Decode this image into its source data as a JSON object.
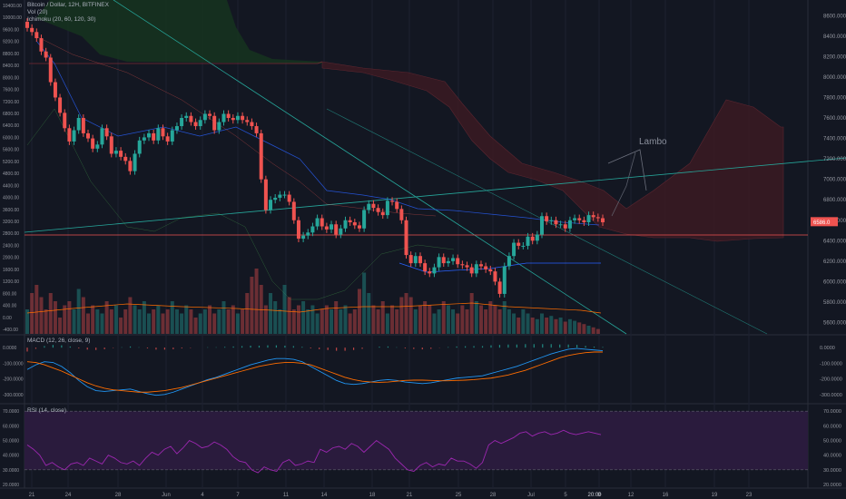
{
  "header": {
    "symbol_line": "Bitcoin / Dollar, 12H, BITFINEX",
    "vol_line": "Vol (20)",
    "ichimoku_line": "Ichimoku (20, 60, 120, 30)"
  },
  "panes": {
    "macd_label": "MACD (12, 26, close, 9)",
    "rsi_label": "RSI (14, close)"
  },
  "annotation": "Lambo",
  "current_price_label": "6586.0",
  "colors": {
    "background": "#131722",
    "up": "#26a69a",
    "down": "#ef5350",
    "macd_line": "#2196f3",
    "signal_line": "#ff6d00",
    "rsi_line": "#9c27b0",
    "rsi_band": "#2a1b3d",
    "cloud_bear": "#3b1a22",
    "cloud_bull": "#16321f"
  },
  "chart_data": [
    {
      "type": "candlestick",
      "title": "Bitcoin / Dollar, 12H, BITFINEX",
      "x_tick_labels": [
        "21",
        "24",
        "28",
        "Jun",
        "4",
        "7",
        "11",
        "14",
        "18",
        "21",
        "25",
        "28",
        "Jul",
        "5",
        "9",
        "12",
        "16",
        "19",
        "23"
      ],
      "price_axis_labels": [
        8600,
        8400,
        8200,
        8000,
        7800,
        7600,
        7400,
        7200,
        7000,
        6800,
        6600,
        6400,
        6200,
        6000,
        5800,
        5600
      ],
      "volume_axis_labels": [
        "10400.00",
        "10000.00",
        "9600.00",
        "9200.00",
        "8800.00",
        "8400.00",
        "8000.00",
        "7600.00",
        "7200.00",
        "6800.00",
        "6400.00",
        "6000.00",
        "5600.00",
        "5200.00",
        "4800.00",
        "4400.00",
        "4000.00",
        "3600.00",
        "3200.00",
        "2800.00",
        "2400.00",
        "2000.00",
        "1600.00",
        "1200.00",
        "800.00",
        "400.00",
        "0.00",
        "-400.00"
      ],
      "ylim": [
        5560,
        8700
      ],
      "current_price": 6586,
      "closes": [
        8480,
        8440,
        8380,
        8250,
        8190,
        7950,
        7800,
        7650,
        7500,
        7370,
        7480,
        7600,
        7450,
        7400,
        7300,
        7340,
        7500,
        7420,
        7250,
        7280,
        7220,
        7180,
        7080,
        7250,
        7380,
        7410,
        7450,
        7380,
        7500,
        7420,
        7370,
        7480,
        7520,
        7600,
        7620,
        7560,
        7520,
        7580,
        7640,
        7620,
        7480,
        7560,
        7640,
        7600,
        7580,
        7620,
        7580,
        7560,
        7520,
        7450,
        7000,
        6700,
        6800,
        6820,
        6850,
        6850,
        6780,
        6600,
        6420,
        6450,
        6480,
        6540,
        6620,
        6540,
        6510,
        6560,
        6460,
        6520,
        6600,
        6580,
        6550,
        6520,
        6700,
        6760,
        6720,
        6680,
        6650,
        6790,
        6780,
        6710,
        6600,
        6260,
        6180,
        6250,
        6180,
        6100,
        6080,
        6140,
        6240,
        6180,
        6200,
        6230,
        6170,
        6160,
        6140,
        6080,
        6170,
        6150,
        6120,
        6100,
        6000,
        5880,
        6150,
        6250,
        6380,
        6350,
        6350,
        6440,
        6400,
        6460,
        6640,
        6590,
        6600,
        6560,
        6560,
        6520,
        6600,
        6620,
        6600,
        6580,
        6650,
        6630,
        6620,
        6580
      ],
      "volume_trend": [
        0.3,
        0.5,
        0.6,
        0.45,
        0.3,
        0.5,
        0.4,
        0.2,
        0.35,
        0.4,
        0.3,
        0.55,
        0.45,
        0.25,
        0.35,
        0.3,
        0.25,
        0.4,
        0.3,
        0.35,
        0.2,
        0.3,
        0.45,
        0.35,
        0.3,
        0.4,
        0.25,
        0.3,
        0.35,
        0.25,
        0.3,
        0.4,
        0.3,
        0.25,
        0.35,
        0.3,
        0.2,
        0.25,
        0.3,
        0.35,
        0.25,
        0.3,
        0.4,
        0.3,
        0.35,
        0.25,
        0.3,
        0.5,
        0.7,
        0.8,
        0.6,
        0.35,
        0.5,
        0.4,
        0.3,
        0.6,
        0.45,
        0.3,
        0.35,
        0.4,
        0.3,
        0.35,
        0.25,
        0.3,
        0.35,
        0.3,
        0.4,
        0.3,
        0.35,
        0.25,
        0.3,
        0.55,
        0.75,
        0.5,
        0.35,
        0.3,
        0.4,
        0.25,
        0.35,
        0.3,
        0.45,
        0.5,
        0.45,
        0.3,
        0.35,
        0.4,
        0.35,
        0.25,
        0.3,
        0.4,
        0.35,
        0.3,
        0.25,
        0.35,
        0.3,
        0.5,
        0.4,
        0.35,
        0.3,
        0.4,
        0.35,
        0.3,
        0.4,
        0.3,
        0.25,
        0.2,
        0.3,
        0.25,
        0.2,
        0.18,
        0.25,
        0.2,
        0.22,
        0.18,
        0.2,
        0.15,
        0.18,
        0.16,
        0.14,
        0.12,
        0.1,
        0.08,
        0.06
      ],
      "annotations": [
        "Lambo"
      ]
    },
    {
      "type": "line",
      "title": "MACD (12, 26, close, 9)",
      "y_tick_labels": [
        "0.0000",
        "-100.0000",
        "-200.0000",
        "-300.0000"
      ],
      "ylim": [
        -330,
        30
      ],
      "series": [
        {
          "name": "MACD",
          "values": [
            -140,
            -110,
            -90,
            -95,
            -120,
            -160,
            -210,
            -250,
            -275,
            -280,
            -275,
            -270,
            -265,
            -280,
            -295,
            -305,
            -300,
            -285,
            -265,
            -245,
            -225,
            -205,
            -190,
            -170,
            -150,
            -130,
            -110,
            -95,
            -80,
            -70,
            -70,
            -75,
            -90,
            -120,
            -150,
            -180,
            -210,
            -230,
            -235,
            -230,
            -220,
            -210,
            -205,
            -210,
            -220,
            -225,
            -230,
            -225,
            -215,
            -205,
            -195,
            -190,
            -185,
            -180,
            -165,
            -150,
            -135,
            -120,
            -100,
            -80,
            -60,
            -40,
            -25,
            -10,
            -5,
            -10,
            -15,
            -20
          ]
        },
        {
          "name": "Signal",
          "values": [
            -90,
            -95,
            -110,
            -130,
            -150,
            -175,
            -200,
            -225,
            -245,
            -260,
            -270,
            -275,
            -280,
            -285,
            -285,
            -280,
            -275,
            -265,
            -255,
            -240,
            -225,
            -210,
            -195,
            -180,
            -165,
            -150,
            -135,
            -120,
            -110,
            -100,
            -95,
            -95,
            -100,
            -110,
            -130,
            -150,
            -170,
            -190,
            -205,
            -215,
            -220,
            -222,
            -220,
            -215,
            -210,
            -208,
            -208,
            -210,
            -212,
            -212,
            -210,
            -208,
            -205,
            -200,
            -195,
            -185,
            -175,
            -160,
            -145,
            -125,
            -105,
            -85,
            -65,
            -50,
            -40,
            -32,
            -28,
            -28
          ]
        }
      ]
    },
    {
      "type": "line",
      "title": "RSI (14, close)",
      "y_tick_labels": [
        "70.0000",
        "60.0000",
        "50.0000",
        "40.0000",
        "30.0000",
        "20.0000"
      ],
      "ylim": [
        20,
        72
      ],
      "band": [
        30,
        70
      ],
      "series": [
        {
          "name": "RSI",
          "values": [
            47,
            44,
            40,
            33,
            35,
            32,
            30,
            34,
            35,
            33,
            38,
            36,
            34,
            40,
            38,
            35,
            34,
            36,
            33,
            38,
            42,
            40,
            44,
            46,
            41,
            45,
            50,
            48,
            45,
            46,
            49,
            47,
            44,
            39,
            36,
            35,
            30,
            28,
            32,
            30,
            29,
            35,
            37,
            33,
            34,
            36,
            35,
            44,
            42,
            45,
            46,
            44,
            48,
            46,
            42,
            46,
            50,
            47,
            44,
            38,
            34,
            30,
            29,
            33,
            35,
            32,
            34,
            33,
            38,
            36,
            36,
            34,
            31,
            35,
            47,
            50,
            48,
            50,
            52,
            55,
            56,
            53,
            55,
            56,
            54,
            55,
            57,
            55,
            54,
            55,
            56,
            55,
            54
          ]
        }
      ]
    }
  ]
}
